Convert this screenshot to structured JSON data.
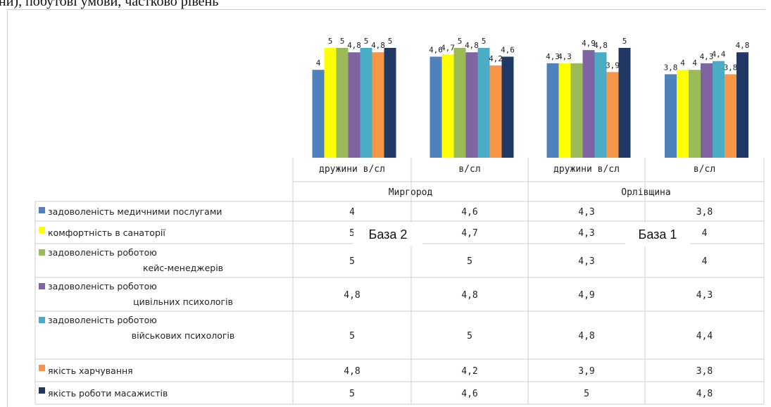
{
  "top_text": "ни), побутові умови, частково рівень",
  "overlays": [
    "База 2",
    "База 1"
  ],
  "colors": {
    "medical": "#4f81bd",
    "comfort": "#ffff00",
    "case": "#9bbb59",
    "civil": "#8064a2",
    "military": "#4bacc6",
    "food": "#f79646",
    "massage": "#1f3864"
  },
  "chart_data": {
    "type": "bar",
    "groups": [
      {
        "name": "Миргород",
        "categories": [
          "дружини в/сл",
          "в/сл"
        ]
      },
      {
        "name": "Орлівщина",
        "categories": [
          "дружини в/сл",
          "в/сл"
        ]
      }
    ],
    "categories": [
      "дружини в/сл",
      "в/сл",
      "дружини в/сл",
      "в/сл"
    ],
    "series": [
      {
        "name": "задоволеність медичними послугами",
        "color_key": "medical",
        "values": [
          4,
          4.6,
          4.3,
          3.8
        ],
        "labels": [
          "4",
          "4,6",
          "4,3",
          "3,8"
        ],
        "table": [
          "4",
          "4,6",
          "4,3",
          "3,8"
        ]
      },
      {
        "name": "комфортність в санаторії",
        "color_key": "comfort",
        "values": [
          5,
          4.7,
          4.3,
          4
        ],
        "labels": [
          "5",
          "4,7",
          "4,3",
          "4"
        ],
        "table": [
          "5",
          "4,7",
          "4,3",
          "4"
        ]
      },
      {
        "name": "задоволеність роботою кейс-менеджерів",
        "color_key": "case",
        "values": [
          5,
          5,
          4.3,
          4
        ],
        "labels": [
          "5",
          "5",
          "",
          "4"
        ],
        "table": [
          "5",
          "5",
          "4,3",
          "4"
        ]
      },
      {
        "name": "задоволеність роботою цивільних психологів",
        "color_key": "civil",
        "values": [
          4.8,
          4.8,
          4.9,
          4.3
        ],
        "labels": [
          "4,8",
          "4,8",
          "4,9",
          "4,3"
        ],
        "table": [
          "4,8",
          "4,8",
          "4,9",
          "4,3"
        ]
      },
      {
        "name": "задоволеність роботою військових психологів",
        "color_key": "military",
        "values": [
          5,
          5,
          4.8,
          4.4
        ],
        "labels": [
          "5",
          "5",
          "4,8",
          "4,4"
        ],
        "table": [
          "5",
          "5",
          "4,8",
          "4,4"
        ]
      },
      {
        "name": "якість харчування",
        "color_key": "food",
        "values": [
          4.8,
          4.2,
          3.9,
          3.8
        ],
        "labels": [
          "4,8",
          "4,2",
          "3,9",
          "3,8"
        ],
        "table": [
          "4,8",
          "4,2",
          "3,9",
          "3,8"
        ]
      },
      {
        "name": "якість роботи масажистів",
        "color_key": "massage",
        "values": [
          5,
          4.6,
          5,
          4.8
        ],
        "labels": [
          "5",
          "4,6",
          "5",
          "4,8"
        ],
        "table": [
          "5",
          "4,6",
          "5",
          "4,8"
        ]
      }
    ],
    "legend": "table-left",
    "grid": true
  }
}
